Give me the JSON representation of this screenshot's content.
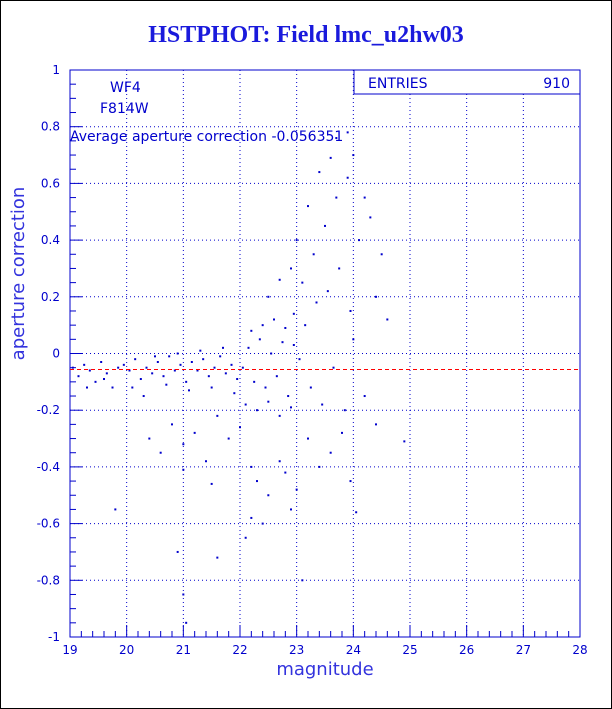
{
  "title": "HSTPHOT: Field lmc_u2hw03",
  "colors": {
    "axis": "#0000cc",
    "points": "#0000cc",
    "reference_line": "#ff0000",
    "title": "#1a1adc"
  },
  "chart_data": {
    "type": "scatter",
    "title": "HSTPHOT: Field lmc_u2hw03",
    "xlabel": "magnitude",
    "ylabel": "aperture correction",
    "xlim": [
      19,
      28
    ],
    "ylim": [
      -1,
      1
    ],
    "x_ticks": [
      19,
      20,
      21,
      22,
      23,
      24,
      25,
      26,
      27,
      28
    ],
    "x_tick_labels": [
      "19",
      "20",
      "21",
      "22",
      "23",
      "24",
      "25",
      "26",
      "27",
      "28"
    ],
    "y_ticks": [
      -1,
      -0.8,
      -0.6,
      -0.4,
      -0.2,
      0,
      0.2,
      0.4,
      0.6,
      0.8,
      1
    ],
    "y_tick_labels": [
      "-1",
      "-0.8",
      "-0.6",
      "-0.4",
      "-0.2",
      "0",
      "0.2",
      "0.4",
      "0.6",
      "0.8",
      "1"
    ],
    "grid": true,
    "annotations": [
      "WF4",
      "F814W"
    ],
    "average_label": "Average aperture correction -0.056351",
    "average_value": -0.056351,
    "stats_box": {
      "label": "ENTRIES",
      "value": "910"
    },
    "series": [
      {
        "points": [
          [
            19.05,
            -0.05
          ],
          [
            19.15,
            -0.08
          ],
          [
            19.25,
            -0.04
          ],
          [
            19.35,
            -0.06
          ],
          [
            19.45,
            -0.1
          ],
          [
            19.55,
            -0.03
          ],
          [
            19.65,
            -0.07
          ],
          [
            19.75,
            -0.12
          ],
          [
            19.85,
            -0.05
          ],
          [
            19.95,
            -0.04
          ],
          [
            20.05,
            -0.06
          ],
          [
            20.15,
            -0.02
          ],
          [
            20.25,
            -0.09
          ],
          [
            20.35,
            -0.05
          ],
          [
            20.45,
            -0.07
          ],
          [
            20.55,
            -0.03
          ],
          [
            20.65,
            -0.08
          ],
          [
            20.75,
            -0.01
          ],
          [
            20.85,
            -0.06
          ],
          [
            20.95,
            -0.04
          ],
          [
            21.05,
            -0.1
          ],
          [
            21.15,
            -0.03
          ],
          [
            21.25,
            -0.06
          ],
          [
            21.35,
            -0.02
          ],
          [
            21.45,
            -0.08
          ],
          [
            21.55,
            -0.05
          ],
          [
            21.65,
            -0.01
          ],
          [
            21.75,
            -0.07
          ],
          [
            21.85,
            -0.04
          ],
          [
            21.95,
            -0.09
          ],
          [
            20.1,
            -0.12
          ],
          [
            20.3,
            -0.15
          ],
          [
            20.5,
            -0.01
          ],
          [
            20.7,
            -0.11
          ],
          [
            20.9,
            0.0
          ],
          [
            21.1,
            -0.13
          ],
          [
            21.3,
            0.01
          ],
          [
            21.5,
            -0.12
          ],
          [
            21.7,
            0.02
          ],
          [
            21.9,
            -0.14
          ],
          [
            22.05,
            -0.05
          ],
          [
            22.15,
            0.02
          ],
          [
            22.25,
            -0.1
          ],
          [
            22.35,
            0.05
          ],
          [
            22.45,
            -0.12
          ],
          [
            22.55,
            0.0
          ],
          [
            22.65,
            -0.08
          ],
          [
            22.75,
            0.04
          ],
          [
            22.85,
            -0.15
          ],
          [
            22.95,
            0.03
          ],
          [
            22.1,
            -0.18
          ],
          [
            22.2,
            0.08
          ],
          [
            22.3,
            -0.2
          ],
          [
            22.4,
            0.1
          ],
          [
            22.5,
            -0.17
          ],
          [
            22.6,
            0.12
          ],
          [
            22.7,
            -0.22
          ],
          [
            22.8,
            0.09
          ],
          [
            22.9,
            -0.19
          ],
          [
            22.95,
            0.14
          ],
          [
            23.05,
            -0.02
          ],
          [
            23.15,
            0.1
          ],
          [
            23.25,
            -0.12
          ],
          [
            23.35,
            0.18
          ],
          [
            23.45,
            -0.18
          ],
          [
            23.55,
            0.22
          ],
          [
            23.65,
            -0.05
          ],
          [
            23.75,
            0.3
          ],
          [
            23.85,
            -0.2
          ],
          [
            23.95,
            0.15
          ],
          [
            23.1,
            0.25
          ],
          [
            23.3,
            0.35
          ],
          [
            23.5,
            0.45
          ],
          [
            23.7,
            0.55
          ],
          [
            23.9,
            0.62
          ],
          [
            23.2,
            -0.3
          ],
          [
            23.4,
            -0.4
          ],
          [
            23.6,
            -0.35
          ],
          [
            23.8,
            -0.28
          ],
          [
            23.95,
            -0.45
          ],
          [
            20.4,
            -0.3
          ],
          [
            20.6,
            -0.35
          ],
          [
            20.8,
            -0.25
          ],
          [
            21.0,
            -0.32
          ],
          [
            21.2,
            -0.28
          ],
          [
            21.4,
            -0.38
          ],
          [
            21.6,
            -0.22
          ],
          [
            21.8,
            -0.3
          ],
          [
            22.0,
            -0.26
          ],
          [
            22.2,
            -0.4
          ],
          [
            22.3,
            -0.45
          ],
          [
            22.5,
            -0.5
          ],
          [
            22.7,
            -0.38
          ],
          [
            22.9,
            -0.55
          ],
          [
            22.1,
            -0.65
          ],
          [
            23.0,
            -0.48
          ],
          [
            22.4,
            -0.6
          ],
          [
            22.8,
            -0.42
          ],
          [
            21.5,
            -0.46
          ],
          [
            21.0,
            -0.41
          ],
          [
            19.3,
            -0.12
          ],
          [
            19.6,
            -0.09
          ],
          [
            19.8,
            -0.55
          ],
          [
            20.9,
            -0.7
          ],
          [
            21.0,
            -0.85
          ],
          [
            21.05,
            -0.95
          ],
          [
            21.6,
            -0.72
          ],
          [
            22.2,
            -0.58
          ],
          [
            23.1,
            -0.8
          ],
          [
            24.05,
            -0.56
          ],
          [
            24.1,
            0.4
          ],
          [
            24.2,
            0.55
          ],
          [
            24.3,
            0.48
          ],
          [
            24.4,
            0.2
          ],
          [
            24.5,
            0.35
          ],
          [
            24.6,
            0.12
          ],
          [
            24.2,
            -0.15
          ],
          [
            24.4,
            -0.25
          ],
          [
            24.9,
            -0.31
          ],
          [
            24.0,
            0.05
          ],
          [
            23.7,
            0.76
          ],
          [
            23.9,
            0.78
          ],
          [
            24.0,
            0.7
          ],
          [
            23.4,
            0.64
          ],
          [
            23.6,
            0.69
          ],
          [
            23.2,
            0.52
          ],
          [
            23.0,
            0.4
          ],
          [
            22.9,
            0.3
          ],
          [
            22.7,
            0.26
          ],
          [
            22.5,
            0.2
          ]
        ]
      }
    ]
  }
}
